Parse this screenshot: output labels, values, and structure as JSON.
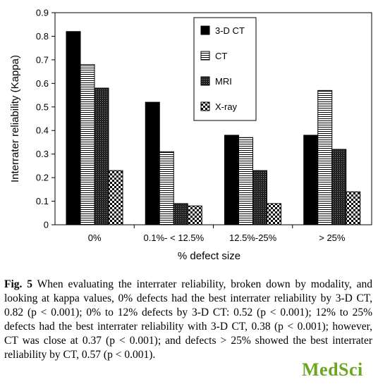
{
  "chart_data": {
    "type": "bar",
    "xlabel": "% defect size",
    "ylabel": "Interrater reliability (Kappa)",
    "ylim": [
      0,
      0.9
    ],
    "yticks": [
      "0",
      "0.1",
      "0.2",
      "0.3",
      "0.4",
      "0.5",
      "0.6",
      "0.7",
      "0.8",
      "0.9"
    ],
    "categories": [
      "0%",
      "0.1%- < 12.5%",
      "12.5%-25%",
      "> 25%"
    ],
    "series": [
      {
        "name": "3-D CT",
        "values": [
          0.82,
          0.52,
          0.38,
          0.38
        ],
        "pattern": "solid"
      },
      {
        "name": "CT",
        "values": [
          0.68,
          0.31,
          0.37,
          0.57
        ],
        "pattern": "horizontal-lines"
      },
      {
        "name": "MRI",
        "values": [
          0.58,
          0.09,
          0.23,
          0.32
        ],
        "pattern": "dark-grid"
      },
      {
        "name": "X-ray",
        "values": [
          0.23,
          0.08,
          0.09,
          0.14
        ],
        "pattern": "checkerboard"
      }
    ],
    "legend_position": "top-right",
    "grid": false
  },
  "caption": {
    "label": "Fig. 5",
    "text": " When evaluating the interrater reliability, broken down by modality, and looking at kappa values, 0% defects had the best interrater reliability by 3-D CT, 0.82 (p < 0.001); 0% to 12% defects by 3-D CT: 0.52 (p < 0.001); 12% to 25% defects had the best interrater reliability with 3-D CT, 0.38 (p < 0.001); however, CT was close at 0.37 (p < 0.001); and defects > 25% showed the best interrater reliability by CT, 0.57 (p < 0.001)."
  },
  "watermark": "MedSci"
}
